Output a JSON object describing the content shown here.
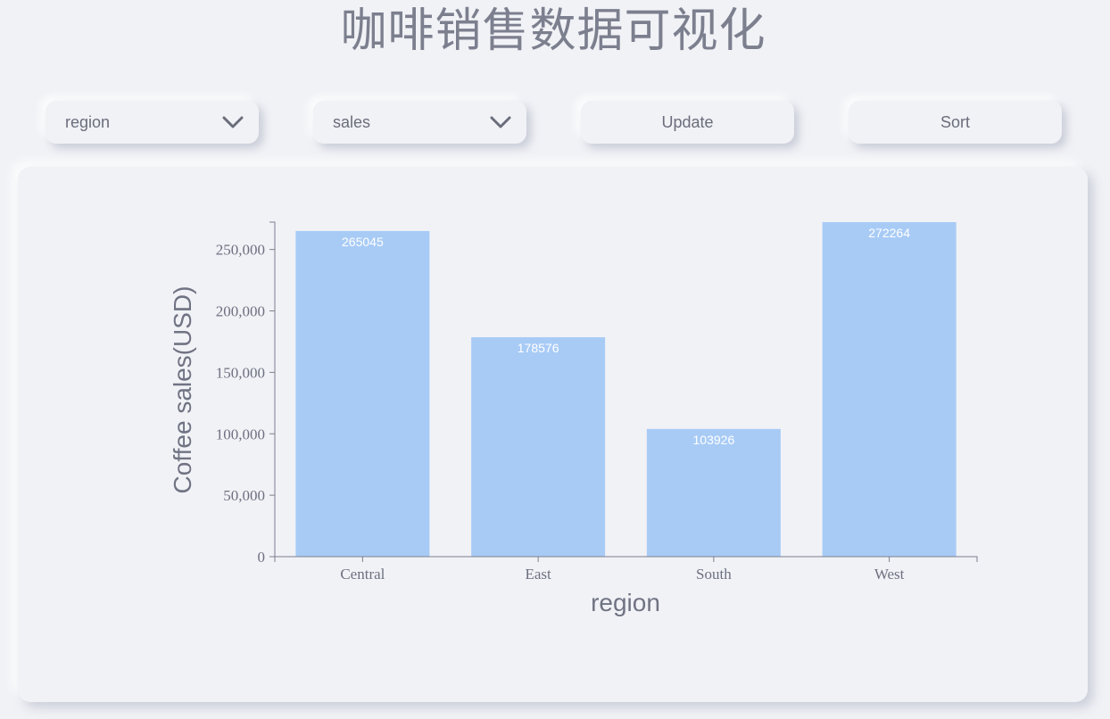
{
  "title": "咖啡销售数据可视化",
  "controls": {
    "x_select": {
      "value": "region",
      "icon": "chevron-down-icon"
    },
    "y_select": {
      "value": "sales",
      "icon": "chevron-down-icon"
    },
    "update_label": "Update",
    "sort_label": "Sort"
  },
  "colors": {
    "bar": "#a8cbf6",
    "axis": "#7c7f8e",
    "background": "#f1f2f6"
  },
  "chart_data": {
    "type": "bar",
    "categories": [
      "Central",
      "East",
      "South",
      "West"
    ],
    "values": [
      265045,
      178576,
      103926,
      272264
    ],
    "xlabel": "region",
    "ylabel": "Coffee sales(USD)",
    "ylim": [
      0,
      272264
    ],
    "yticks": [
      0,
      50000,
      100000,
      150000,
      200000,
      250000
    ],
    "ytick_labels": [
      "0",
      "50,000",
      "100,000",
      "150,000",
      "200,000",
      "250,000"
    ],
    "grid": false,
    "data_labels": true
  }
}
